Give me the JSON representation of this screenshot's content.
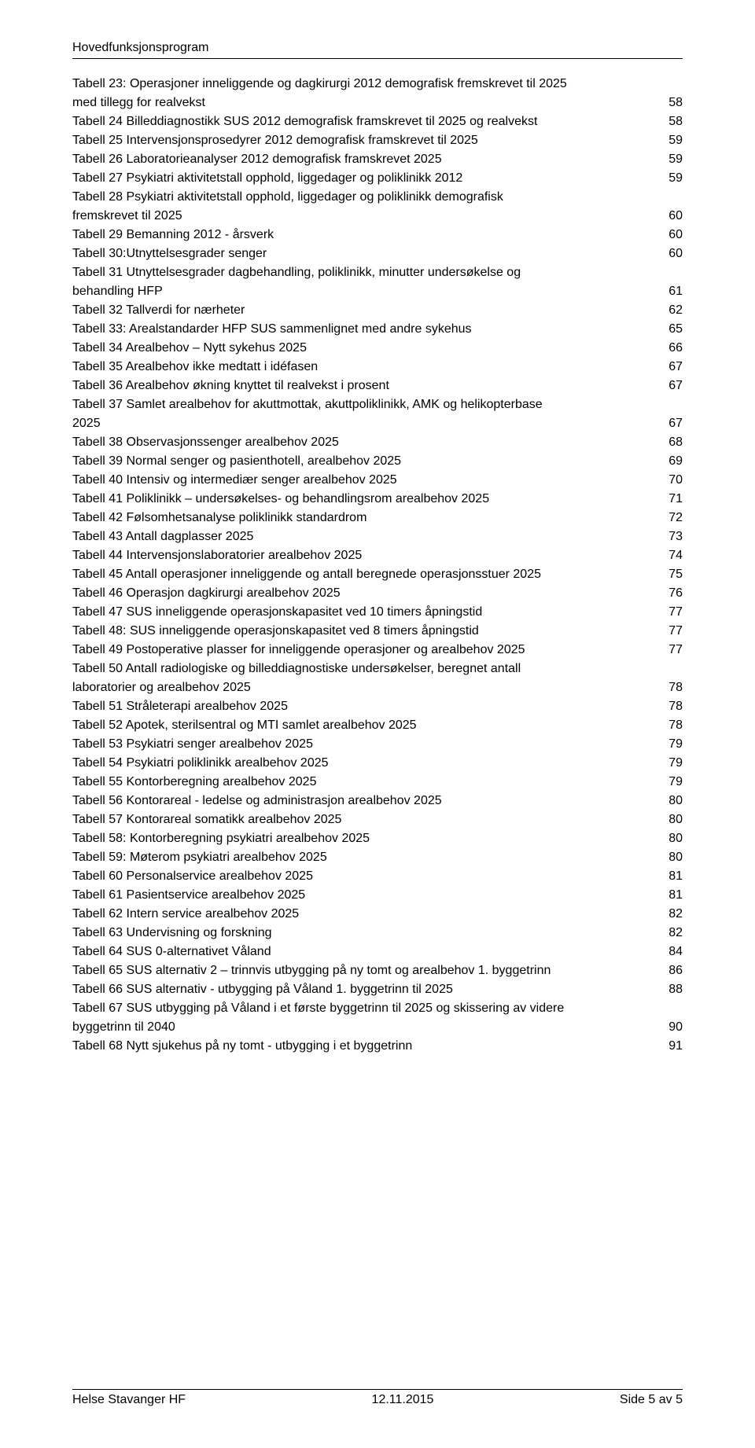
{
  "header": {
    "title": "Hovedfunksjonsprogram"
  },
  "toc": {
    "entries": [
      {
        "label_lines": [
          "Tabell 23: Operasjoner inneliggende og dagkirurgi 2012 demografisk fremskrevet til 2025",
          "med tillegg for realvekst"
        ],
        "page": "58"
      },
      {
        "label_lines": [
          "Tabell 24 Billeddiagnostikk SUS 2012 demografisk framskrevet til 2025 og realvekst"
        ],
        "page": "58"
      },
      {
        "label_lines": [
          "Tabell 25 Intervensjonsprosedyrer 2012 demografisk framskrevet til 2025"
        ],
        "page": "59"
      },
      {
        "label_lines": [
          "Tabell 26 Laboratorieanalyser 2012 demografisk framskrevet 2025"
        ],
        "page": "59"
      },
      {
        "label_lines": [
          "Tabell 27 Psykiatri aktivitetstall opphold, liggedager og poliklinikk 2012"
        ],
        "page": "59"
      },
      {
        "label_lines": [
          "Tabell 28 Psykiatri aktivitetstall opphold, liggedager og poliklinikk demografisk",
          "fremskrevet til 2025"
        ],
        "page": "60"
      },
      {
        "label_lines": [
          "Tabell 29 Bemanning 2012 - årsverk"
        ],
        "page": "60"
      },
      {
        "label_lines": [
          "Tabell 30:Utnyttelsesgrader senger"
        ],
        "page": "60"
      },
      {
        "label_lines": [
          "Tabell 31 Utnyttelsesgrader dagbehandling, poliklinikk, minutter undersøkelse og",
          "behandling HFP"
        ],
        "page": "61"
      },
      {
        "label_lines": [
          "Tabell 32 Tallverdi for nærheter"
        ],
        "page": "62"
      },
      {
        "label_lines": [
          "Tabell 33: Arealstandarder HFP SUS sammenlignet med andre sykehus"
        ],
        "page": "65"
      },
      {
        "label_lines": [
          "Tabell 34 Arealbehov – Nytt sykehus 2025"
        ],
        "page": "66"
      },
      {
        "label_lines": [
          "Tabell 35 Arealbehov ikke medtatt i idéfasen"
        ],
        "page": "67"
      },
      {
        "label_lines": [
          "Tabell 36 Arealbehov økning knyttet til realvekst i prosent"
        ],
        "page": "67"
      },
      {
        "label_lines": [
          "Tabell 37 Samlet arealbehov for akuttmottak, akuttpoliklinikk, AMK og helikopterbase",
          "2025"
        ],
        "page": "67"
      },
      {
        "label_lines": [
          "Tabell 38 Observasjonssenger arealbehov 2025"
        ],
        "page": "68"
      },
      {
        "label_lines": [
          "Tabell 39 Normal senger og pasienthotell, arealbehov 2025"
        ],
        "page": "69"
      },
      {
        "label_lines": [
          "Tabell 40 Intensiv og intermediær senger arealbehov 2025"
        ],
        "page": "70"
      },
      {
        "label_lines": [
          "Tabell 41 Poliklinikk – undersøkelses- og behandlingsrom arealbehov 2025"
        ],
        "page": "71"
      },
      {
        "label_lines": [
          "Tabell 42 Følsomhetsanalyse poliklinikk standardrom"
        ],
        "page": "72"
      },
      {
        "label_lines": [
          "Tabell 43 Antall dagplasser 2025"
        ],
        "page": "73"
      },
      {
        "label_lines": [
          "Tabell 44 Intervensjonslaboratorier arealbehov 2025"
        ],
        "page": "74"
      },
      {
        "label_lines": [
          "Tabell 45 Antall operasjoner inneliggende og antall beregnede operasjonsstuer 2025"
        ],
        "page": "75"
      },
      {
        "label_lines": [
          "Tabell 46 Operasjon dagkirurgi arealbehov 2025"
        ],
        "page": "76"
      },
      {
        "label_lines": [
          "Tabell 47 SUS inneliggende operasjonskapasitet ved 10 timers åpningstid"
        ],
        "page": "77"
      },
      {
        "label_lines": [
          "Tabell 48: SUS inneliggende operasjonskapasitet ved 8 timers åpningstid"
        ],
        "page": "77"
      },
      {
        "label_lines": [
          "Tabell 49 Postoperative plasser for inneliggende operasjoner og arealbehov 2025"
        ],
        "page": "77"
      },
      {
        "label_lines": [
          "Tabell 50 Antall radiologiske og billeddiagnostiske undersøkelser, beregnet antall",
          "laboratorier og arealbehov 2025"
        ],
        "page": "78"
      },
      {
        "label_lines": [
          "Tabell 51 Stråleterapi arealbehov 2025"
        ],
        "page": "78"
      },
      {
        "label_lines": [
          "Tabell 52 Apotek, sterilsentral og MTI samlet arealbehov 2025"
        ],
        "page": "78"
      },
      {
        "label_lines": [
          "Tabell 53 Psykiatri senger arealbehov 2025"
        ],
        "page": "79"
      },
      {
        "label_lines": [
          "Tabell 54 Psykiatri poliklinikk arealbehov 2025"
        ],
        "page": "79"
      },
      {
        "label_lines": [
          "Tabell 55 Kontorberegning arealbehov 2025"
        ],
        "page": "79"
      },
      {
        "label_lines": [
          "Tabell 56 Kontorareal - ledelse og administrasjon arealbehov 2025"
        ],
        "page": "80"
      },
      {
        "label_lines": [
          "Tabell 57 Kontorareal somatikk arealbehov 2025"
        ],
        "page": "80"
      },
      {
        "label_lines": [
          "Tabell 58: Kontorberegning psykiatri arealbehov 2025"
        ],
        "page": "80"
      },
      {
        "label_lines": [
          "Tabell 59: Møterom psykiatri arealbehov 2025"
        ],
        "page": "80"
      },
      {
        "label_lines": [
          "Tabell 60 Personalservice arealbehov 2025"
        ],
        "page": "81"
      },
      {
        "label_lines": [
          "Tabell 61 Pasientservice arealbehov 2025"
        ],
        "page": "81"
      },
      {
        "label_lines": [
          "Tabell 62 Intern service arealbehov 2025"
        ],
        "page": "82"
      },
      {
        "label_lines": [
          "Tabell 63 Undervisning og forskning"
        ],
        "page": "82"
      },
      {
        "label_lines": [
          "Tabell 64 SUS 0-alternativet Våland"
        ],
        "page": "84"
      },
      {
        "label_lines": [
          "Tabell 65 SUS alternativ 2 – trinnvis utbygging på ny tomt og arealbehov 1. byggetrinn"
        ],
        "page": "86"
      },
      {
        "label_lines": [
          "Tabell 66 SUS alternativ - utbygging på Våland 1. byggetrinn til 2025"
        ],
        "page": "88"
      },
      {
        "label_lines": [
          "Tabell 67 SUS utbygging på Våland i et første byggetrinn til 2025 og skissering av videre",
          "byggetrinn til 2040"
        ],
        "page": "90"
      },
      {
        "label_lines": [
          "Tabell 68 Nytt sjukehus på ny tomt - utbygging i et byggetrinn"
        ],
        "page": "91"
      }
    ]
  },
  "footer": {
    "left": "Helse Stavanger HF",
    "center": "12.11.2015",
    "right": "Side 5 av 5"
  }
}
